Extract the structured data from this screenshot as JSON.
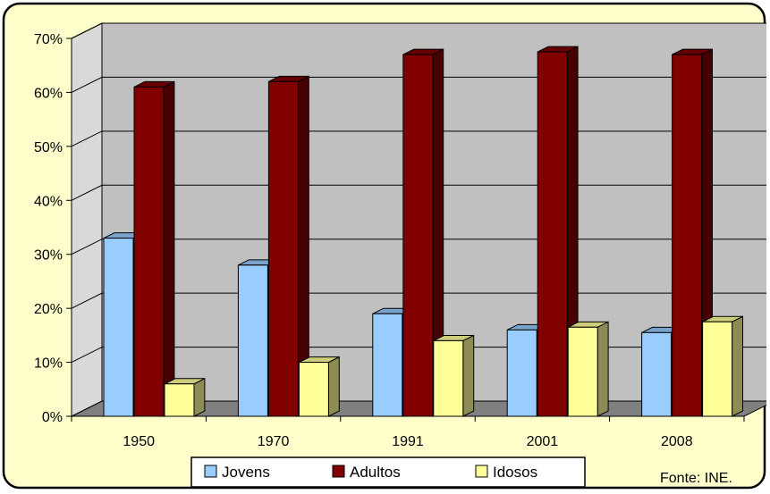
{
  "chart_data": {
    "type": "bar",
    "title": "",
    "xlabel": "",
    "ylabel": "",
    "categories": [
      "1950",
      "1970",
      "1991",
      "2001",
      "2008"
    ],
    "series": [
      {
        "name": "Jovens",
        "values": [
          33,
          28,
          19,
          16,
          15.5
        ],
        "color": "#99ccff"
      },
      {
        "name": "Adultos",
        "values": [
          61,
          62,
          67,
          67.5,
          67
        ],
        "color": "#800000"
      },
      {
        "name": "Idosos",
        "values": [
          6,
          10,
          14,
          16.5,
          17.5
        ],
        "color": "#ffff99"
      }
    ],
    "ylim": [
      0,
      70
    ],
    "yticks": [
      "0%",
      "10%",
      "20%",
      "30%",
      "40%",
      "50%",
      "60%",
      "70%"
    ],
    "grid": true,
    "legend_position": "bottom",
    "style": "3d-column",
    "colors": {
      "frame_background": "#ffffcc",
      "frame_border": "#000000",
      "wall": "#c0c0c0",
      "floor": "#808080"
    },
    "source_note": "Fonte: INE."
  }
}
